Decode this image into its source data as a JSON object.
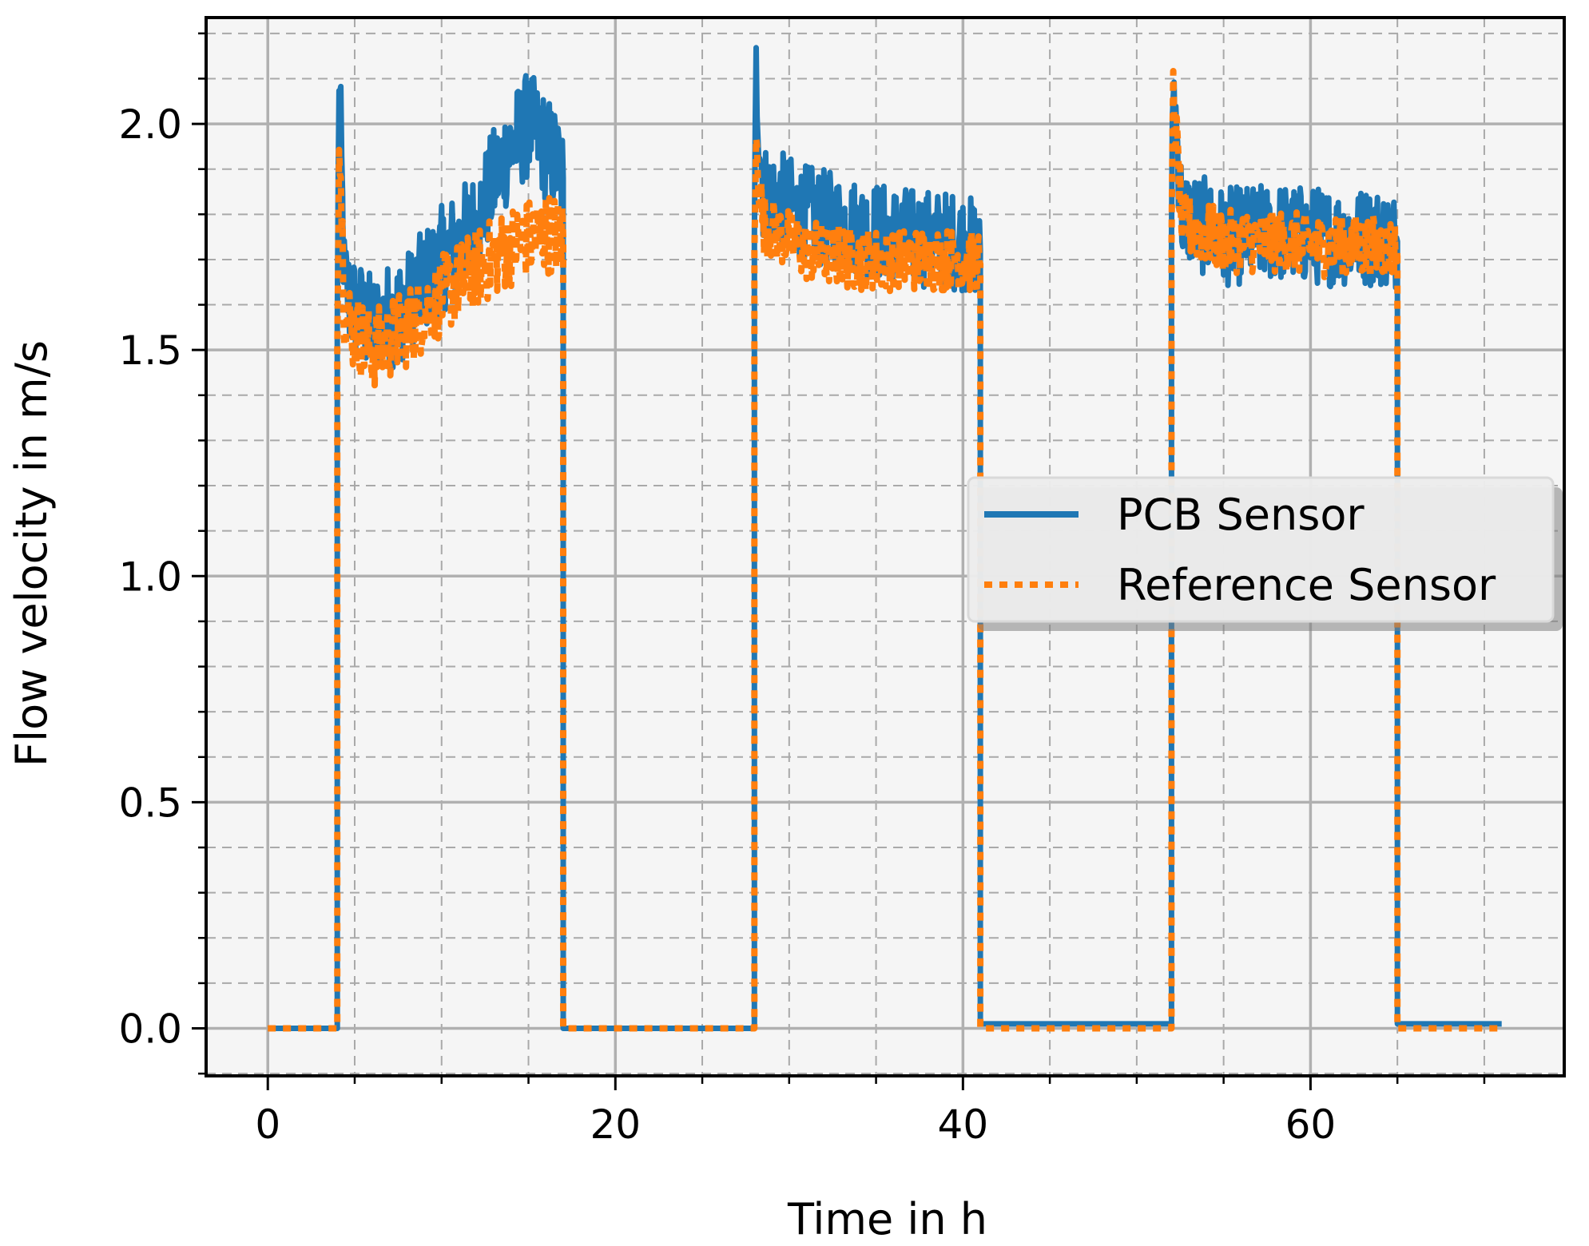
{
  "chart_data": {
    "type": "line",
    "title": "",
    "xlabel": "Time in h",
    "ylabel": "Flow velocity in m/s",
    "xlim": [
      -3.55,
      74.6
    ],
    "ylim": [
      -0.105,
      2.235
    ],
    "x_major_ticks": [
      0,
      20,
      40,
      60
    ],
    "x_tick_labels": [
      "0",
      "20",
      "40",
      "60"
    ],
    "x_minor_step": 5,
    "y_major_ticks": [
      0.0,
      0.5,
      1.0,
      1.5,
      2.0
    ],
    "y_tick_labels": [
      "0.0",
      "0.5",
      "1.0",
      "1.5",
      "2.0"
    ],
    "y_minor_step": 0.1,
    "grid": "major solid, minor dashed",
    "legend_position": "center-right",
    "series": [
      {
        "name": "PCB Sensor",
        "color": "#1f77b4",
        "style": "solid",
        "segments": [
          {
            "x": [
              0,
              4
            ],
            "y": [
              0.0,
              0.0
            ]
          },
          {
            "x": [
              4,
              4.1,
              4.4,
              4.8,
              6,
              8,
              10,
              12,
              13.5,
              15,
              16.5,
              17
            ],
            "y": [
              1.55,
              2.12,
              1.65,
              1.6,
              1.55,
              1.6,
              1.7,
              1.78,
              1.92,
              2.0,
              1.92,
              1.88
            ],
            "noise": 0.12
          },
          {
            "x": [
              17,
              28
            ],
            "y": [
              0.0,
              0.0
            ]
          },
          {
            "x": [
              28,
              28.1,
              28.5,
              31,
              34,
              37,
              40,
              41
            ],
            "y": [
              1.75,
              2.11,
              1.85,
              1.8,
              1.77,
              1.75,
              1.74,
              1.72
            ],
            "noise": 0.11
          },
          {
            "x": [
              41,
              52
            ],
            "y": [
              0.01,
              0.01
            ]
          },
          {
            "x": [
              52,
              52.1,
              52.6,
              55,
              58,
              61,
              64,
              65
            ],
            "y": [
              1.75,
              2.1,
              1.8,
              1.75,
              1.76,
              1.75,
              1.75,
              1.74
            ],
            "noise": 0.11
          },
          {
            "x": [
              65,
              71
            ],
            "y": [
              0.01,
              0.01
            ]
          }
        ]
      },
      {
        "name": "Reference Sensor",
        "color": "#ff7f0e",
        "style": "dotted",
        "segments": [
          {
            "x": [
              0,
              4
            ],
            "y": [
              0.0,
              0.0
            ]
          },
          {
            "x": [
              4,
              4.1,
              4.4,
              4.8,
              6,
              8,
              10,
              12,
              14,
              16,
              17
            ],
            "y": [
              1.5,
              2.03,
              1.6,
              1.55,
              1.5,
              1.55,
              1.62,
              1.68,
              1.73,
              1.76,
              1.75
            ],
            "noise": 0.09
          },
          {
            "x": [
              17,
              28
            ],
            "y": [
              0.0,
              0.0
            ]
          },
          {
            "x": [
              28,
              28.1,
              28.5,
              31,
              34,
              37,
              40,
              41
            ],
            "y": [
              1.72,
              1.95,
              1.78,
              1.72,
              1.7,
              1.7,
              1.7,
              1.69
            ],
            "noise": 0.07
          },
          {
            "x": [
              41,
              52
            ],
            "y": [
              0.0,
              0.0
            ]
          },
          {
            "x": [
              52,
              52.1,
              52.6,
              55,
              58,
              61,
              64,
              65
            ],
            "y": [
              1.73,
              2.07,
              1.78,
              1.74,
              1.74,
              1.73,
              1.73,
              1.72
            ],
            "noise": 0.07
          },
          {
            "x": [
              65,
              71
            ],
            "y": [
              0.0,
              0.0
            ]
          }
        ]
      }
    ]
  }
}
